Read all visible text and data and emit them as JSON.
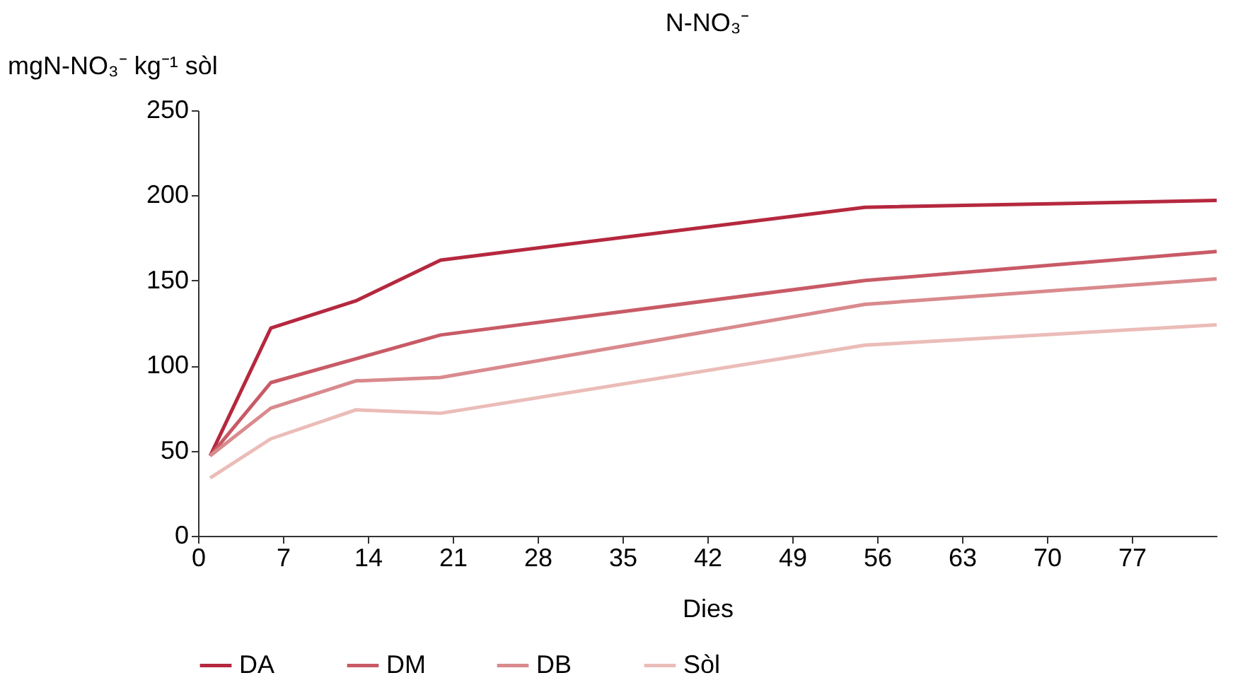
{
  "chart_data": {
    "type": "line",
    "title": "N-NO₃⁻",
    "ylabel": "mgN-NO₃⁻ kg⁻¹ sòl",
    "xlabel": "Dies",
    "x": [
      1,
      6,
      13,
      20,
      55,
      84
    ],
    "series": [
      {
        "name": "DA",
        "color": "#b5283e",
        "values": [
          47,
          122,
          138,
          162,
          193,
          197
        ]
      },
      {
        "name": "DM",
        "color": "#c85a66",
        "values": [
          47,
          90,
          104,
          118,
          150,
          167
        ]
      },
      {
        "name": "DB",
        "color": "#d98a8d",
        "values": [
          47,
          75,
          91,
          93,
          136,
          151
        ]
      },
      {
        "name": "Sòl",
        "color": "#ebbcb8",
        "values": [
          34,
          57,
          74,
          72,
          112,
          124
        ]
      }
    ],
    "xlim": [
      0,
      84
    ],
    "xticks": [
      0,
      7,
      14,
      21,
      28,
      35,
      42,
      49,
      56,
      63,
      70,
      77
    ],
    "ylim": [
      0,
      250
    ],
    "yticks": [
      0,
      50,
      100,
      150,
      200,
      250
    ],
    "grid": false,
    "legend": "bottom",
    "marker": "none",
    "line_style": "solid"
  }
}
